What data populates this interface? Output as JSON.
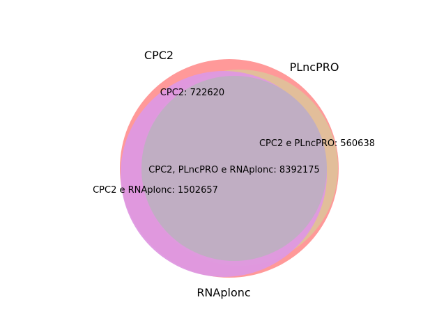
{
  "venn": {
    "sets": [
      {
        "name": "CPC2",
        "color": "#ff9999"
      },
      {
        "name": "PLncPRO",
        "color": "#e0c09a"
      },
      {
        "name": "RNAplonc",
        "color": "#de98e2"
      }
    ],
    "overlap_color": "#c0aec3",
    "regions": {
      "cpc2_only": "CPC2: 722620",
      "cpc2_plncpro": "CPC2 e PLncPRO: 560638",
      "all_three": "CPC2, PLncPRO e RNAplonc: 8392175",
      "cpc2_rnaplonc": "CPC2 e RNAplonc: 1502657"
    }
  }
}
